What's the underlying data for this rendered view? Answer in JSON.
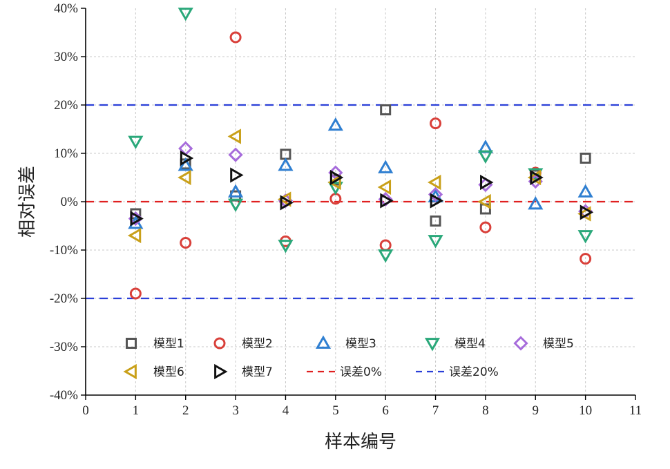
{
  "chart_data": {
    "type": "scatter",
    "xlabel": "样本编号",
    "ylabel": "相对误差",
    "xlim": [
      0,
      11
    ],
    "ylim": [
      -40,
      40
    ],
    "x_ticks": [
      "0",
      "1",
      "2",
      "3",
      "4",
      "5",
      "6",
      "7",
      "8",
      "9",
      "10",
      "11"
    ],
    "y_ticks": [
      "40%",
      "30%",
      "20%",
      "10%",
      "0%",
      "-10%",
      "-20%",
      "-30%",
      "-40%"
    ],
    "grid": true,
    "legend_placement": "bottom",
    "x": [
      1,
      2,
      3,
      4,
      5,
      6,
      7,
      8,
      9,
      10
    ],
    "series": [
      {
        "name": "模型1",
        "marker": "square",
        "color": "#555555",
        "values": [
          -2.5,
          7.8,
          1.2,
          9.8,
          4.5,
          19,
          -4,
          -1.5,
          5.5,
          9
        ]
      },
      {
        "name": "模型2",
        "marker": "circle",
        "color": "#d9403a",
        "values": [
          -19,
          -8.5,
          34,
          -8.2,
          0.6,
          -9,
          16.2,
          -5.3,
          6,
          -11.8
        ]
      },
      {
        "name": "模型3",
        "marker": "triangle-up",
        "color": "#2f7fd1",
        "values": [
          -4.5,
          7.5,
          2,
          7.5,
          15.8,
          7,
          1,
          11.2,
          -0.5,
          2
        ]
      },
      {
        "name": "模型4",
        "marker": "triangle-down",
        "color": "#2aa87a",
        "values": [
          12.5,
          39,
          -0.5,
          -9,
          3,
          -11,
          -8,
          9.5,
          5.8,
          -7
        ]
      },
      {
        "name": "模型5",
        "marker": "diamond",
        "color": "#a66bdb",
        "values": [
          -3.5,
          11,
          9.7,
          0.2,
          6,
          0.5,
          1.5,
          3.5,
          4.2,
          -2
        ]
      },
      {
        "name": "模型6",
        "marker": "triangle-left",
        "color": "#c9a019",
        "values": [
          -7,
          5,
          13.5,
          0.5,
          4,
          3,
          4,
          0,
          5,
          -2.5
        ]
      },
      {
        "name": "模型7",
        "marker": "triangle-right",
        "color": "#111111",
        "values": [
          -3.5,
          9,
          5.5,
          -0.2,
          5,
          0.2,
          0.2,
          4,
          5,
          -2.2
        ]
      }
    ],
    "reference_lines": [
      {
        "name": "误差0%",
        "values": [
          0
        ],
        "color": "#e02020",
        "style": "dashed"
      },
      {
        "name": "误差20%",
        "values": [
          20,
          -20
        ],
        "color": "#2a3fd8",
        "style": "dashed"
      }
    ]
  }
}
